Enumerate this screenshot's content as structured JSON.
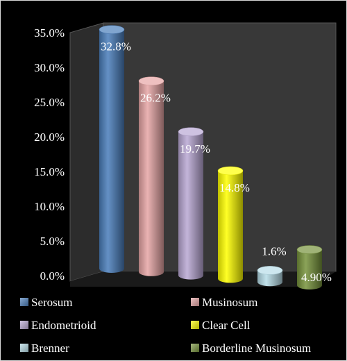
{
  "chart_data": {
    "type": "bar",
    "style": "3d-cylinder",
    "categories": [
      "Serosum",
      "Musinosum",
      "Endometrioid",
      "Clear Cell",
      "Brenner",
      "Borderline Musinosum"
    ],
    "values": [
      32.8,
      26.2,
      19.7,
      14.8,
      1.6,
      4.9
    ],
    "data_labels": [
      "32.8%",
      "26.2%",
      "19.7%",
      "14.8%",
      "1.6%",
      "4.90%"
    ],
    "colors": [
      "#4a7ebb",
      "#e6a5a5",
      "#b9a8d4",
      "#ffff00",
      "#b7dde8",
      "#77933c"
    ],
    "ylim": [
      0,
      35
    ],
    "y_ticks": [
      "0.0%",
      "5.0%",
      "10.0%",
      "15.0%",
      "20.0%",
      "25.0%",
      "30.0%",
      "35.0%"
    ],
    "grid": false,
    "legend_position": "bottom",
    "legend": [
      "Serosum",
      "Musinosum",
      "Endometrioid",
      "Clear Cell",
      "Brenner",
      "Borderline Musinosum"
    ],
    "title": "",
    "xlabel": "",
    "ylabel": ""
  }
}
